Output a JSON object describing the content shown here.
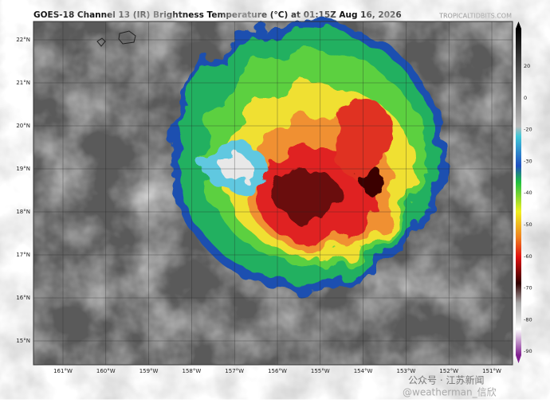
{
  "header": {
    "title": "GOES-18 Channel 13 (IR) Brightness Temperature (°C) at 01:15Z Aug 16, 2026",
    "source": "TROPICALTIDBITS.COM"
  },
  "map": {
    "lat_labels": [
      "22°N",
      "21°N",
      "20°N",
      "19°N",
      "18°N",
      "17°N",
      "16°N",
      "15°N"
    ],
    "lon_labels": [
      "161°W",
      "160°W",
      "159°W",
      "158°W",
      "157°W",
      "156°W",
      "155°W",
      "154°W",
      "153°W",
      "152°W",
      "151°W"
    ]
  },
  "colorbar": {
    "labels": [
      "20",
      "0",
      "-20",
      "-30",
      "-40",
      "-50",
      "-60",
      "-70",
      "-80",
      "-90"
    ]
  },
  "watermark": {
    "line1": "公众号 · 江苏新闻",
    "line2": "@weatherman_信欣"
  }
}
